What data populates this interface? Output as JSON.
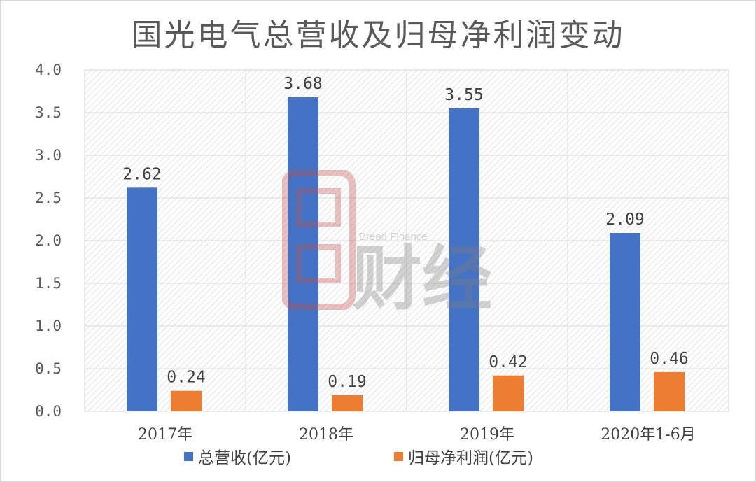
{
  "chart_data": {
    "type": "bar",
    "title": "国光电气总营收及归母净利润变动",
    "categories": [
      "2017年",
      "2018年",
      "2019年",
      "2020年1-6月"
    ],
    "series": [
      {
        "name": "总营收(亿元)",
        "values": [
          2.62,
          3.68,
          3.55,
          2.09
        ],
        "color": "#4472c4"
      },
      {
        "name": "归母净利润(亿元)",
        "values": [
          0.24,
          0.19,
          0.42,
          0.46
        ],
        "color": "#ed7d31"
      }
    ],
    "data_labels": [
      [
        "2.62",
        "3.68",
        "3.55",
        "2.09"
      ],
      [
        "0.24",
        "0.19",
        "0.42",
        "0.46"
      ]
    ],
    "yticks": [
      "0.0",
      "0.5",
      "1.0",
      "1.5",
      "2.0",
      "2.5",
      "3.0",
      "3.5",
      "4.0"
    ],
    "ylim": [
      0,
      4
    ],
    "grid": true,
    "legend_position": "bottom"
  },
  "watermark": {
    "english": "Bread Finance",
    "chinese": "财经",
    "colors": {
      "logo": "#c0504d",
      "text": "#7f7f7f"
    }
  }
}
